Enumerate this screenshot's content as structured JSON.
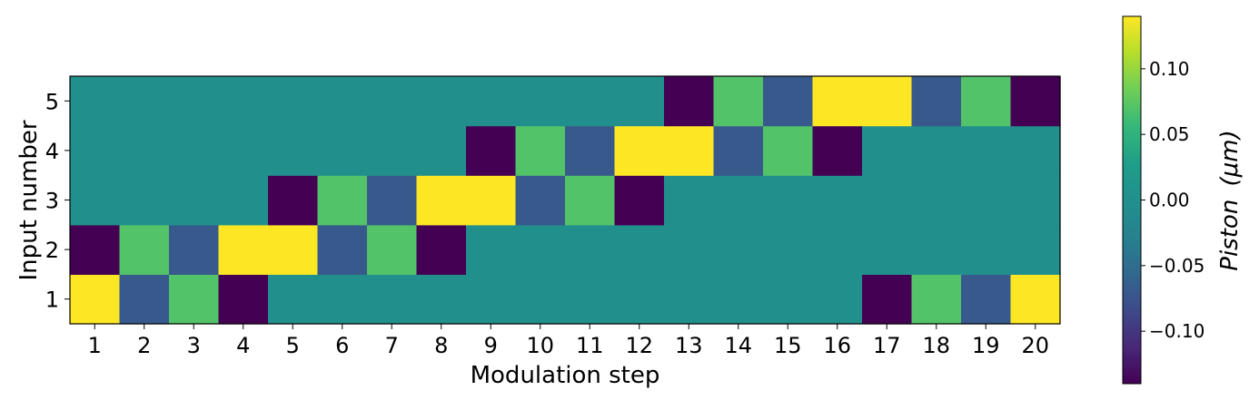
{
  "chart_data": {
    "type": "heatmap",
    "title": "",
    "xlabel": "Modulation step",
    "ylabel": "Input number",
    "x_categories": [
      "1",
      "2",
      "3",
      "4",
      "5",
      "6",
      "7",
      "8",
      "9",
      "10",
      "11",
      "12",
      "13",
      "14",
      "15",
      "16",
      "17",
      "18",
      "19",
      "20"
    ],
    "y_categories": [
      "1",
      "2",
      "3",
      "4",
      "5"
    ],
    "values": [
      [
        0.14,
        -0.07,
        0.07,
        -0.14,
        0,
        0,
        0,
        0,
        0,
        0,
        0,
        0,
        0,
        0,
        0,
        0,
        -0.14,
        0.07,
        -0.07,
        0.14
      ],
      [
        -0.14,
        0.07,
        -0.07,
        0.14,
        0.14,
        -0.07,
        0.07,
        -0.14,
        0,
        0,
        0,
        0,
        0,
        0,
        0,
        0,
        0,
        0,
        0,
        0
      ],
      [
        0,
        0,
        0,
        0,
        -0.14,
        0.07,
        -0.07,
        0.14,
        0.14,
        -0.07,
        0.07,
        -0.14,
        0,
        0,
        0,
        0,
        0,
        0,
        0,
        0
      ],
      [
        0,
        0,
        0,
        0,
        0,
        0,
        0,
        0,
        -0.14,
        0.07,
        -0.07,
        0.14,
        0.14,
        -0.07,
        0.07,
        -0.14,
        0,
        0,
        0,
        0
      ],
      [
        0,
        0,
        0,
        0,
        0,
        0,
        0,
        0,
        0,
        0,
        0,
        0,
        -0.14,
        0.07,
        -0.07,
        0.14,
        0.14,
        -0.07,
        0.07,
        -0.14
      ]
    ],
    "colormap": "viridis",
    "vmin": -0.14,
    "vmax": 0.14,
    "colorbar": {
      "label_prefix": "Piston",
      "label_unit": "(μm)",
      "ticks": [
        -0.1,
        -0.05,
        0.0,
        0.05,
        0.1
      ],
      "tick_labels": [
        "−0.10",
        "−0.05",
        "0.00",
        "0.05",
        "0.10"
      ]
    }
  }
}
